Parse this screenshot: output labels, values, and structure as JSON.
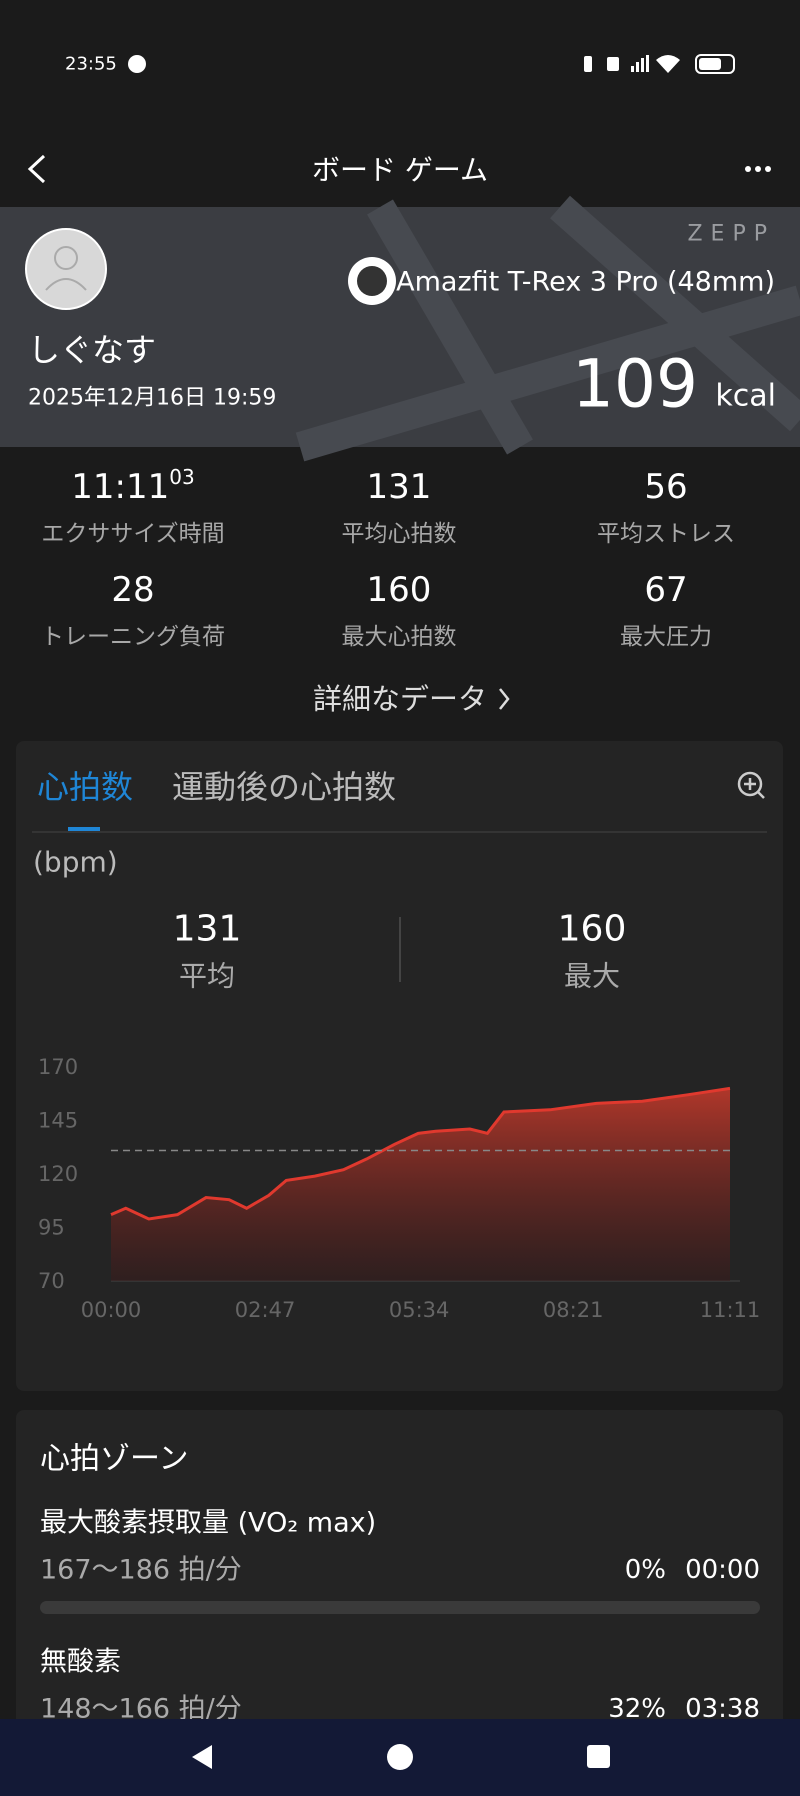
{
  "status_bar": {
    "time": "23:55"
  },
  "header": {
    "title": "ボード ゲーム"
  },
  "banner": {
    "logo": "ZEPP",
    "user_name": "しぐなす",
    "datetime": "2025年12月16日 19:59",
    "device": "Amazfit T-Rex 3 Pro (48mm)",
    "calories": 109,
    "calories_unit": "kcal"
  },
  "stats": [
    {
      "value": "11:11",
      "sup": "03",
      "label": "エクササイズ時間"
    },
    {
      "value": 131,
      "label": "平均心拍数"
    },
    {
      "value": 56,
      "label": "平均ストレス"
    },
    {
      "value": 28,
      "label": "トレーニング負荷"
    },
    {
      "value": 160,
      "label": "最大心拍数"
    },
    {
      "value": 67,
      "label": "最大圧力"
    }
  ],
  "details_link": "詳細なデータ",
  "heart_rate_card": {
    "tabs": [
      "心拍数",
      "運動後の心拍数"
    ],
    "unit": "(bpm)",
    "summary": [
      {
        "value": 131,
        "label": "平均"
      },
      {
        "value": 160,
        "label": "最大"
      }
    ],
    "chart": {
      "type": "line",
      "color": "#e0392e",
      "x": [
        0,
        16,
        41,
        72,
        103,
        128,
        147,
        171,
        190,
        221,
        252,
        277,
        308,
        333,
        352,
        389,
        408,
        426,
        476,
        526,
        576,
        625,
        671
      ],
      "values": [
        101,
        104,
        99,
        101,
        109,
        108,
        104,
        110,
        117,
        119,
        122,
        127,
        134,
        139,
        140,
        141,
        139,
        149,
        150,
        153,
        154,
        157,
        160
      ],
      "xlim": [
        0,
        671
      ],
      "ylim": [
        70,
        170
      ],
      "yticks": [
        70,
        95,
        120,
        145,
        170
      ],
      "xticks": [
        {
          "value": 0,
          "label": "00:00"
        },
        {
          "value": 167,
          "label": "02:47"
        },
        {
          "value": 334,
          "label": "05:34"
        },
        {
          "value": 501,
          "label": "08:21"
        },
        {
          "value": 671,
          "label": "11:11"
        }
      ]
    }
  },
  "zones_card": {
    "title": "心拍ゾーン",
    "zones": [
      {
        "name": "最大酸素摂取量 (VO₂ max)",
        "range": "167〜186 拍/分",
        "percent": "0%",
        "time": "00:00"
      },
      {
        "name": "無酸素",
        "range": "148〜166 拍/分",
        "percent": "32%",
        "time": "03:38"
      }
    ]
  }
}
